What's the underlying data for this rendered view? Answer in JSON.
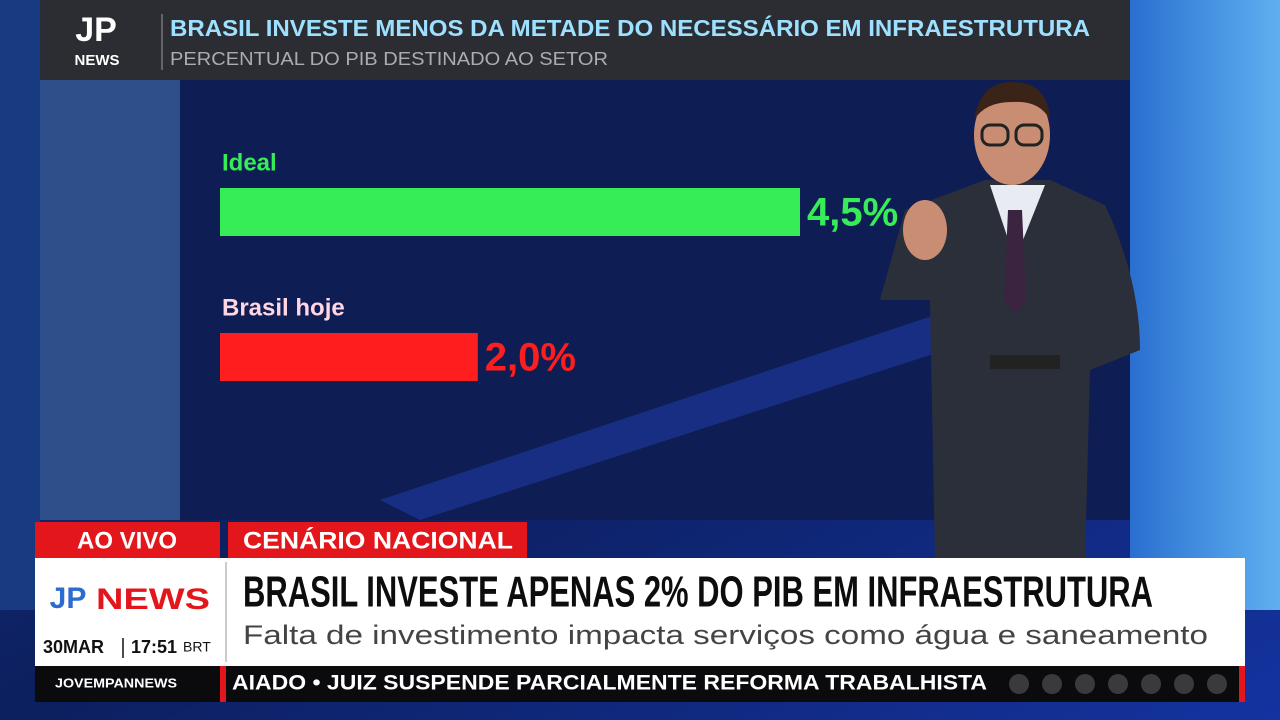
{
  "header": {
    "logo_text": "NEWS"
  },
  "chart_data": {
    "type": "bar",
    "orientation": "horizontal",
    "title": "BRASIL INVESTE MENOS DA METADE DO NECESSÁRIO EM INFRAESTRUTURA",
    "subtitle": "PERCENTUAL DO PIB DESTINADO AO SETOR",
    "categories": [
      "Ideal",
      "Brasil hoje"
    ],
    "values": [
      4.5,
      2.0
    ],
    "value_labels": [
      "4,5%",
      "2,0%"
    ],
    "colors": [
      "#36ec57",
      "#ff1e1e"
    ]
  },
  "lower_third": {
    "live": "AO VIVO",
    "section": "CENÁRIO NACIONAL",
    "logo_text": "NEWS",
    "headline": "BRASIL INVESTE APENAS 2% DO PIB EM INFRAESTRUTURA",
    "subheadline": "Falta de investimento impacta serviços como água e saneamento",
    "date": "30MAR",
    "time": "17:51",
    "timezone": "BRT"
  },
  "ticker": {
    "channel": "JOVEMPANNEWS",
    "text": "AIADO • JUIZ SUSPENDE PARCIALMENTE REFORMA TRABALHISTA"
  }
}
